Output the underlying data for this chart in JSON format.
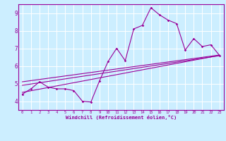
{
  "bg_color": "#cceeff",
  "line_color": "#990099",
  "grid_color": "#ffffff",
  "xlabel": "Windchill (Refroidissement éolien,°C)",
  "xlim": [
    -0.5,
    23.5
  ],
  "ylim": [
    3.5,
    9.5
  ],
  "xticks": [
    0,
    1,
    2,
    3,
    4,
    5,
    6,
    7,
    8,
    9,
    10,
    11,
    12,
    13,
    14,
    15,
    16,
    17,
    18,
    19,
    20,
    21,
    22,
    23
  ],
  "yticks": [
    4,
    5,
    6,
    7,
    8,
    9
  ],
  "curve1_x": [
    0,
    1,
    2,
    3,
    4,
    5,
    6,
    7,
    8,
    9,
    10,
    11,
    12,
    13,
    14,
    15,
    16,
    17,
    18,
    19,
    20,
    21,
    22,
    23
  ],
  "curve1_y": [
    4.4,
    4.7,
    5.1,
    4.8,
    4.7,
    4.7,
    4.6,
    4.0,
    3.95,
    5.15,
    6.25,
    7.0,
    6.3,
    8.1,
    8.3,
    9.3,
    8.9,
    8.6,
    8.4,
    6.9,
    7.55,
    7.1,
    7.2,
    6.6
  ],
  "line1_x": [
    0,
    23
  ],
  "line1_y": [
    4.5,
    6.6
  ],
  "line2_x": [
    0,
    23
  ],
  "line2_y": [
    4.9,
    6.58
  ],
  "line3_x": [
    0,
    23
  ],
  "line3_y": [
    5.1,
    6.62
  ]
}
